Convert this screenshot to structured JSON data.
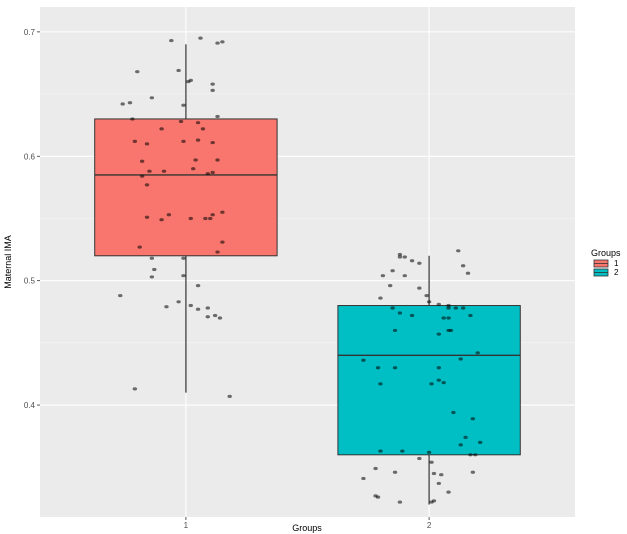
{
  "chart_data": {
    "type": "boxplot",
    "xlabel": "Groups",
    "ylabel": "Maternal IMA",
    "categories": [
      "1",
      "2"
    ],
    "ylim": [
      0.31,
      0.72
    ],
    "yticks": [
      0.4,
      0.5,
      0.6,
      0.7
    ],
    "ytick_labels": [
      "0.4",
      "0.5",
      "0.6",
      "0.7"
    ],
    "grid": true,
    "legend": {
      "title": "Groups",
      "placement": "right",
      "entries": [
        {
          "label": "1",
          "color": "#F8766D"
        },
        {
          "label": "2",
          "color": "#00BFC4"
        }
      ]
    },
    "series": [
      {
        "category": "1",
        "color": "#F8766D",
        "whisker_low": 0.41,
        "q1": 0.52,
        "median": 0.585,
        "q3": 0.63,
        "whisker_high": 0.69,
        "points": [
          [
            0.94,
            0.693
          ],
          [
            1.06,
            0.695
          ],
          [
            1.13,
            0.691
          ],
          [
            1.15,
            0.692
          ],
          [
            0.8,
            0.668
          ],
          [
            0.97,
            0.669
          ],
          [
            1.02,
            0.661
          ],
          [
            1.01,
            0.66
          ],
          [
            1.11,
            0.658
          ],
          [
            1.11,
            0.653
          ],
          [
            0.86,
            0.647
          ],
          [
            0.74,
            0.642
          ],
          [
            0.77,
            0.643
          ],
          [
            0.99,
            0.641
          ],
          [
            0.78,
            0.63
          ],
          [
            1.05,
            0.627
          ],
          [
            1.13,
            0.632
          ],
          [
            0.98,
            0.628
          ],
          [
            0.9,
            0.622
          ],
          [
            1.07,
            0.622
          ],
          [
            1.05,
            0.613
          ],
          [
            0.79,
            0.612
          ],
          [
            0.84,
            0.61
          ],
          [
            1.11,
            0.611
          ],
          [
            0.99,
            0.612
          ],
          [
            0.82,
            0.596
          ],
          [
            1.04,
            0.597
          ],
          [
            1.13,
            0.597
          ],
          [
            1.03,
            0.59
          ],
          [
            0.85,
            0.588
          ],
          [
            0.91,
            0.588
          ],
          [
            1.11,
            0.587
          ],
          [
            0.82,
            0.584
          ],
          [
            1.09,
            0.586
          ],
          [
            0.84,
            0.577
          ],
          [
            0.84,
            0.551
          ],
          [
            0.93,
            0.553
          ],
          [
            1.02,
            0.55
          ],
          [
            1.11,
            0.553
          ],
          [
            1.15,
            0.555
          ],
          [
            1.1,
            0.55
          ],
          [
            0.9,
            0.549
          ],
          [
            1.08,
            0.55
          ],
          [
            0.81,
            0.527
          ],
          [
            1.15,
            0.531
          ],
          [
            1.13,
            0.523
          ],
          [
            0.86,
            0.518
          ],
          [
            0.87,
            0.509
          ],
          [
            0.86,
            0.503
          ],
          [
            0.99,
            0.504
          ],
          [
            1.05,
            0.496
          ],
          [
            0.99,
            0.518
          ],
          [
            0.73,
            0.488
          ],
          [
            1.02,
            0.48
          ],
          [
            0.92,
            0.479
          ],
          [
            0.97,
            0.483
          ],
          [
            1.05,
            0.477
          ],
          [
            1.09,
            0.478
          ],
          [
            1.12,
            0.472
          ],
          [
            1.09,
            0.471
          ],
          [
            1.14,
            0.47
          ],
          [
            0.79,
            0.413
          ],
          [
            1.18,
            0.407
          ]
        ]
      },
      {
        "category": "2",
        "color": "#00BFC4",
        "whisker_low": 0.32,
        "q1": 0.36,
        "median": 0.44,
        "q3": 0.48,
        "whisker_high": 0.52,
        "points": [
          [
            1.88,
            0.521
          ],
          [
            1.88,
            0.519
          ],
          [
            1.9,
            0.519
          ],
          [
            2.12,
            0.524
          ],
          [
            1.93,
            0.516
          ],
          [
            1.85,
            0.508
          ],
          [
            1.9,
            0.504
          ],
          [
            1.81,
            0.504
          ],
          [
            1.96,
            0.514
          ],
          [
            2.14,
            0.512
          ],
          [
            2.16,
            0.506
          ],
          [
            1.84,
            0.496
          ],
          [
            1.96,
            0.494
          ],
          [
            1.99,
            0.488
          ],
          [
            1.8,
            0.486
          ],
          [
            1.85,
            0.478
          ],
          [
            1.88,
            0.474
          ],
          [
            2.0,
            0.483
          ],
          [
            2.08,
            0.48
          ],
          [
            2.08,
            0.478
          ],
          [
            2.11,
            0.478
          ],
          [
            2.14,
            0.478
          ],
          [
            2.04,
            0.481
          ],
          [
            2.06,
            0.47
          ],
          [
            2.17,
            0.472
          ],
          [
            2.08,
            0.47
          ],
          [
            1.93,
            0.472
          ],
          [
            1.86,
            0.46
          ],
          [
            2.08,
            0.46
          ],
          [
            2.09,
            0.46
          ],
          [
            2.04,
            0.457
          ],
          [
            2.2,
            0.442
          ],
          [
            2.13,
            0.437
          ],
          [
            1.73,
            0.436
          ],
          [
            2.04,
            0.43
          ],
          [
            1.86,
            0.43
          ],
          [
            1.79,
            0.43
          ],
          [
            2.01,
            0.417
          ],
          [
            2.06,
            0.418
          ],
          [
            2.04,
            0.42
          ],
          [
            1.8,
            0.417
          ],
          [
            2.1,
            0.394
          ],
          [
            2.18,
            0.389
          ],
          [
            2.15,
            0.374
          ],
          [
            2.13,
            0.368
          ],
          [
            2.21,
            0.37
          ],
          [
            1.8,
            0.363
          ],
          [
            1.89,
            0.363
          ],
          [
            2.0,
            0.362
          ],
          [
            2.17,
            0.36
          ],
          [
            2.19,
            0.36
          ],
          [
            1.96,
            0.357
          ],
          [
            2.01,
            0.354
          ],
          [
            1.86,
            0.346
          ],
          [
            2.02,
            0.345
          ],
          [
            1.78,
            0.349
          ],
          [
            1.73,
            0.341
          ],
          [
            2.04,
            0.337
          ],
          [
            2.18,
            0.346
          ],
          [
            2.05,
            0.344
          ],
          [
            1.78,
            0.327
          ],
          [
            1.79,
            0.326
          ],
          [
            1.88,
            0.322
          ],
          [
            2.01,
            0.322
          ],
          [
            2.02,
            0.323
          ],
          [
            2.08,
            0.33
          ]
        ]
      }
    ]
  }
}
